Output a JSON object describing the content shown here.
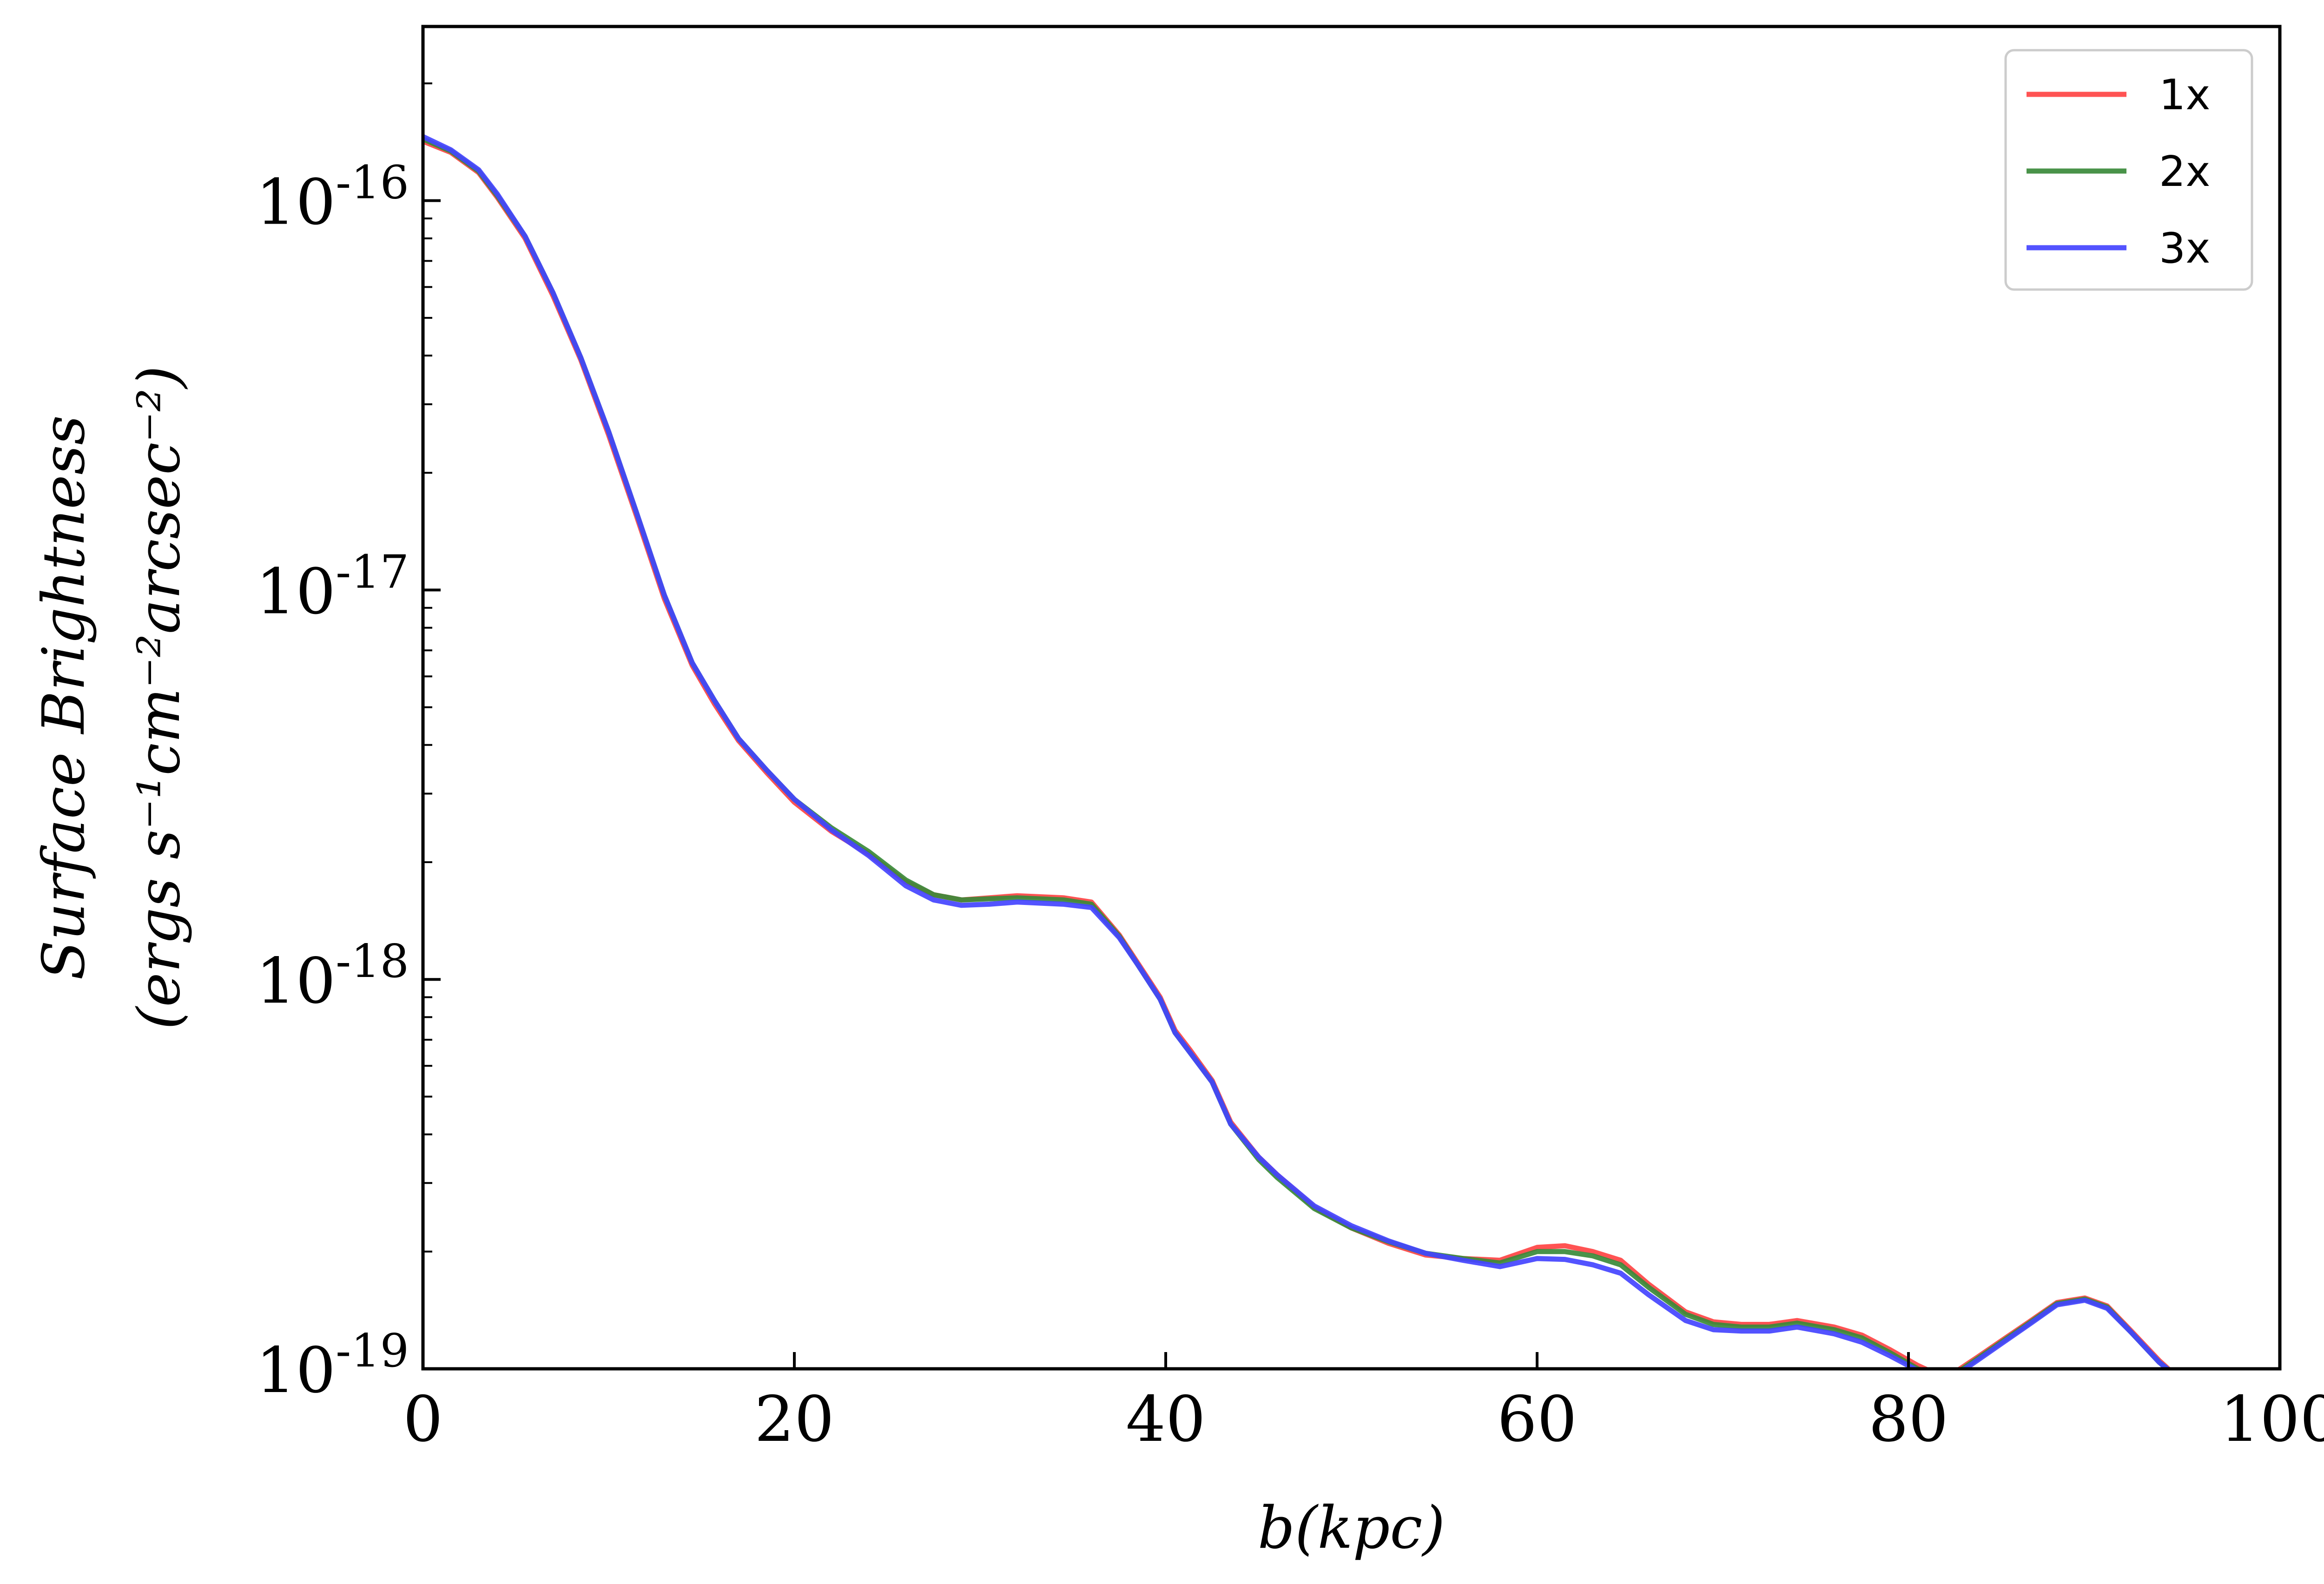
{
  "chart_data": {
    "type": "line",
    "title": "",
    "xlabel": "b(kpc)",
    "ylabel_line1": "Surface Brightness",
    "ylabel_line2": "(ergs s⁻¹cm⁻²arcsec⁻²)",
    "xscale": "linear",
    "yscale": "log",
    "xlim": [
      0,
      100
    ],
    "ylim": [
      1e-19,
      2.8e-16
    ],
    "x_ticks": [
      0,
      20,
      40,
      60,
      80,
      100
    ],
    "x_tick_labels": [
      "0",
      "20",
      "40",
      "60",
      "80",
      "100"
    ],
    "y_ticks": [
      1e-19,
      1e-18,
      1e-17,
      1e-16
    ],
    "y_tick_labels": [
      {
        "base": "10",
        "exp": "-19"
      },
      {
        "base": "10",
        "exp": "-18"
      },
      {
        "base": "10",
        "exp": "-17"
      },
      {
        "base": "10",
        "exp": "-16"
      }
    ],
    "grid": false,
    "legend_position": "top-right",
    "series": [
      {
        "name": "1x",
        "color": "#ff4444",
        "points": [
          [
            0,
            1.42e-16
          ],
          [
            1.5,
            1.33e-16
          ],
          [
            3,
            1.18e-16
          ],
          [
            4,
            1.02e-16
          ],
          [
            5.5,
            8e-17
          ],
          [
            7,
            5.7e-17
          ],
          [
            8.5,
            3.9e-17
          ],
          [
            10,
            2.5e-17
          ],
          [
            11.5,
            1.55e-17
          ],
          [
            13,
            9.5e-18
          ],
          [
            14.5,
            6.4e-18
          ],
          [
            15.7,
            5.1e-18
          ],
          [
            17,
            4.1e-18
          ],
          [
            18.5,
            3.4e-18
          ],
          [
            20,
            2.85e-18
          ],
          [
            22,
            2.4e-18
          ],
          [
            24,
            2.1e-18
          ],
          [
            26,
            1.78e-18
          ],
          [
            27.5,
            1.65e-18
          ],
          [
            29,
            1.6e-18
          ],
          [
            30.5,
            1.62e-18
          ],
          [
            32,
            1.64e-18
          ],
          [
            34.5,
            1.62e-18
          ],
          [
            36,
            1.58e-18
          ],
          [
            37.5,
            1.3e-18
          ],
          [
            38.5,
            1.1e-18
          ],
          [
            39.7,
            9e-19
          ],
          [
            40.5,
            7.4e-19
          ],
          [
            41.3,
            6.6e-19
          ],
          [
            42.5,
            5.5e-19
          ],
          [
            43.5,
            4.3e-19
          ],
          [
            45,
            3.5e-19
          ],
          [
            46,
            3.15e-19
          ],
          [
            48,
            2.6e-19
          ],
          [
            50,
            2.3e-19
          ],
          [
            52,
            2.1e-19
          ],
          [
            54,
            1.96e-19
          ],
          [
            56,
            1.92e-19
          ],
          [
            58,
            1.9e-19
          ],
          [
            60,
            2.05e-19
          ],
          [
            61.5,
            2.07e-19
          ],
          [
            63,
            2e-19
          ],
          [
            64.5,
            1.9e-19
          ],
          [
            66,
            1.65e-19
          ],
          [
            68,
            1.4e-19
          ],
          [
            69.5,
            1.32e-19
          ],
          [
            71,
            1.3e-19
          ],
          [
            72.5,
            1.3e-19
          ],
          [
            74,
            1.33e-19
          ],
          [
            76,
            1.28e-19
          ],
          [
            77.5,
            1.22e-19
          ],
          [
            79,
            1.12e-19
          ],
          [
            80.5,
            1.02e-19
          ],
          [
            81.5,
            9.7e-20
          ],
          [
            82.5,
            9.8e-20
          ],
          [
            83.7,
            1.07e-19
          ],
          [
            85,
            1.18e-19
          ],
          [
            86.5,
            1.32e-19
          ],
          [
            88,
            1.48e-19
          ],
          [
            89.5,
            1.52e-19
          ],
          [
            90.7,
            1.45e-19
          ],
          [
            92,
            1.25e-19
          ],
          [
            93.5,
            1.05e-19
          ],
          [
            94.5,
            9.5e-20
          ]
        ]
      },
      {
        "name": "2x",
        "color": "#3a8a3a",
        "points": [
          [
            0,
            1.44e-16
          ],
          [
            1.5,
            1.34e-16
          ],
          [
            3,
            1.19e-16
          ],
          [
            4,
            1.03e-16
          ],
          [
            5.5,
            8.1e-17
          ],
          [
            7,
            5.8e-17
          ],
          [
            8.5,
            3.95e-17
          ],
          [
            10,
            2.55e-17
          ],
          [
            11.5,
            1.58e-17
          ],
          [
            13,
            9.7e-18
          ],
          [
            14.5,
            6.5e-18
          ],
          [
            15.7,
            5.2e-18
          ],
          [
            17,
            4.15e-18
          ],
          [
            18.5,
            3.45e-18
          ],
          [
            20,
            2.9e-18
          ],
          [
            22,
            2.45e-18
          ],
          [
            24,
            2.13e-18
          ],
          [
            26,
            1.8e-18
          ],
          [
            27.5,
            1.65e-18
          ],
          [
            29,
            1.6e-18
          ],
          [
            30.5,
            1.61e-18
          ],
          [
            32,
            1.62e-18
          ],
          [
            34.5,
            1.6e-18
          ],
          [
            36,
            1.56e-18
          ],
          [
            37.5,
            1.29e-18
          ],
          [
            38.5,
            1.09e-18
          ],
          [
            39.7,
            8.9e-19
          ],
          [
            40.5,
            7.3e-19
          ],
          [
            41.3,
            6.5e-19
          ],
          [
            42.5,
            5.45e-19
          ],
          [
            43.5,
            4.25e-19
          ],
          [
            45,
            3.45e-19
          ],
          [
            46,
            3.1e-19
          ],
          [
            48,
            2.58e-19
          ],
          [
            50,
            2.3e-19
          ],
          [
            52,
            2.12e-19
          ],
          [
            54,
            1.98e-19
          ],
          [
            56,
            1.92e-19
          ],
          [
            58,
            1.87e-19
          ],
          [
            60,
            2e-19
          ],
          [
            61.5,
            2e-19
          ],
          [
            63,
            1.95e-19
          ],
          [
            64.5,
            1.85e-19
          ],
          [
            66,
            1.62e-19
          ],
          [
            68,
            1.38e-19
          ],
          [
            69.5,
            1.3e-19
          ],
          [
            71,
            1.28e-19
          ],
          [
            72.5,
            1.28e-19
          ],
          [
            74,
            1.31e-19
          ],
          [
            76,
            1.26e-19
          ],
          [
            77.5,
            1.2e-19
          ],
          [
            79,
            1.1e-19
          ],
          [
            80.5,
            1e-19
          ],
          [
            81.5,
            9.6e-20
          ],
          [
            82.5,
            9.7e-20
          ],
          [
            83.7,
            1.06e-19
          ],
          [
            85,
            1.17e-19
          ],
          [
            86.5,
            1.31e-19
          ],
          [
            88,
            1.47e-19
          ],
          [
            89.5,
            1.51e-19
          ],
          [
            90.7,
            1.44e-19
          ],
          [
            92,
            1.24e-19
          ],
          [
            93.5,
            1.04e-19
          ],
          [
            94.5,
            9.5e-20
          ]
        ]
      },
      {
        "name": "3x",
        "color": "#4444ff",
        "points": [
          [
            0,
            1.46e-16
          ],
          [
            1.5,
            1.35e-16
          ],
          [
            3,
            1.2e-16
          ],
          [
            4,
            1.04e-16
          ],
          [
            5.5,
            8.1e-17
          ],
          [
            7,
            5.8e-17
          ],
          [
            8.5,
            3.95e-17
          ],
          [
            10,
            2.55e-17
          ],
          [
            11.5,
            1.58e-17
          ],
          [
            13,
            9.7e-18
          ],
          [
            14.5,
            6.5e-18
          ],
          [
            15.7,
            5.2e-18
          ],
          [
            17,
            4.15e-18
          ],
          [
            18.5,
            3.45e-18
          ],
          [
            20,
            2.9e-18
          ],
          [
            22,
            2.42e-18
          ],
          [
            24,
            2.08e-18
          ],
          [
            26,
            1.74e-18
          ],
          [
            27.5,
            1.6e-18
          ],
          [
            29,
            1.55e-18
          ],
          [
            30.5,
            1.56e-18
          ],
          [
            32,
            1.58e-18
          ],
          [
            34.5,
            1.56e-18
          ],
          [
            36,
            1.53e-18
          ],
          [
            37.5,
            1.28e-18
          ],
          [
            38.5,
            1.09e-18
          ],
          [
            39.7,
            8.9e-19
          ],
          [
            40.5,
            7.3e-19
          ],
          [
            41.3,
            6.5e-19
          ],
          [
            42.5,
            5.45e-19
          ],
          [
            43.5,
            4.25e-19
          ],
          [
            45,
            3.5e-19
          ],
          [
            46,
            3.15e-19
          ],
          [
            48,
            2.62e-19
          ],
          [
            50,
            2.33e-19
          ],
          [
            52,
            2.13e-19
          ],
          [
            54,
            1.98e-19
          ],
          [
            56,
            1.9e-19
          ],
          [
            58,
            1.83e-19
          ],
          [
            60,
            1.92e-19
          ],
          [
            61.5,
            1.91e-19
          ],
          [
            63,
            1.85e-19
          ],
          [
            64.5,
            1.76e-19
          ],
          [
            66,
            1.55e-19
          ],
          [
            68,
            1.33e-19
          ],
          [
            69.5,
            1.26e-19
          ],
          [
            71,
            1.25e-19
          ],
          [
            72.5,
            1.25e-19
          ],
          [
            74,
            1.28e-19
          ],
          [
            76,
            1.23e-19
          ],
          [
            77.5,
            1.17e-19
          ],
          [
            79,
            1.08e-19
          ],
          [
            80.5,
            9.9e-20
          ],
          [
            81.5,
            9.5e-20
          ],
          [
            82.5,
            9.6e-20
          ],
          [
            83.7,
            1.05e-19
          ],
          [
            85,
            1.16e-19
          ],
          [
            86.5,
            1.3e-19
          ],
          [
            88,
            1.46e-19
          ],
          [
            89.5,
            1.5e-19
          ],
          [
            90.7,
            1.43e-19
          ],
          [
            92,
            1.24e-19
          ],
          [
            93.5,
            1.04e-19
          ],
          [
            94.5,
            9.5e-20
          ]
        ]
      }
    ]
  }
}
